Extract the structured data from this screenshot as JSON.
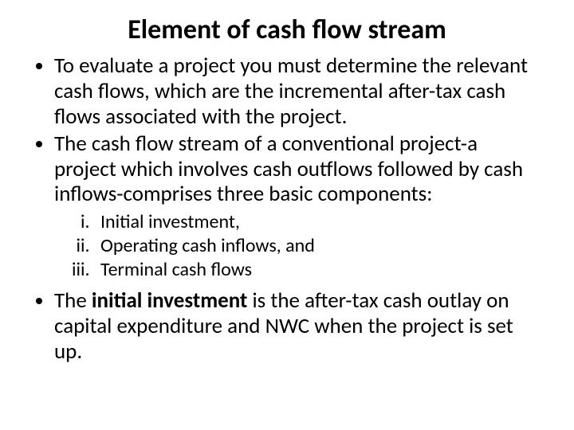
{
  "title": "Element of cash flow stream",
  "bullets": {
    "b1": "To evaluate a project you must determine the relevant cash flows, which are the incremental after-tax cash flows associated with the project.",
    "b2": "The cash flow stream of a conventional project-a project which involves cash outflows followed by cash inflows-comprises three basic components:",
    "b3_pre": "The ",
    "b3_bold": "initial investment",
    "b3_post": " is the after-tax cash outlay on capital expenditure and NWC when the project is set up."
  },
  "sublist": {
    "i1": "Initial investment,",
    "i2": "Operating cash inflows, and",
    "i3": "Terminal cash flows"
  },
  "colors": {
    "background": "#ffffff",
    "text": "#000000"
  },
  "fontsizes": {
    "title": 34,
    "bullet": 27,
    "sub": 24
  }
}
